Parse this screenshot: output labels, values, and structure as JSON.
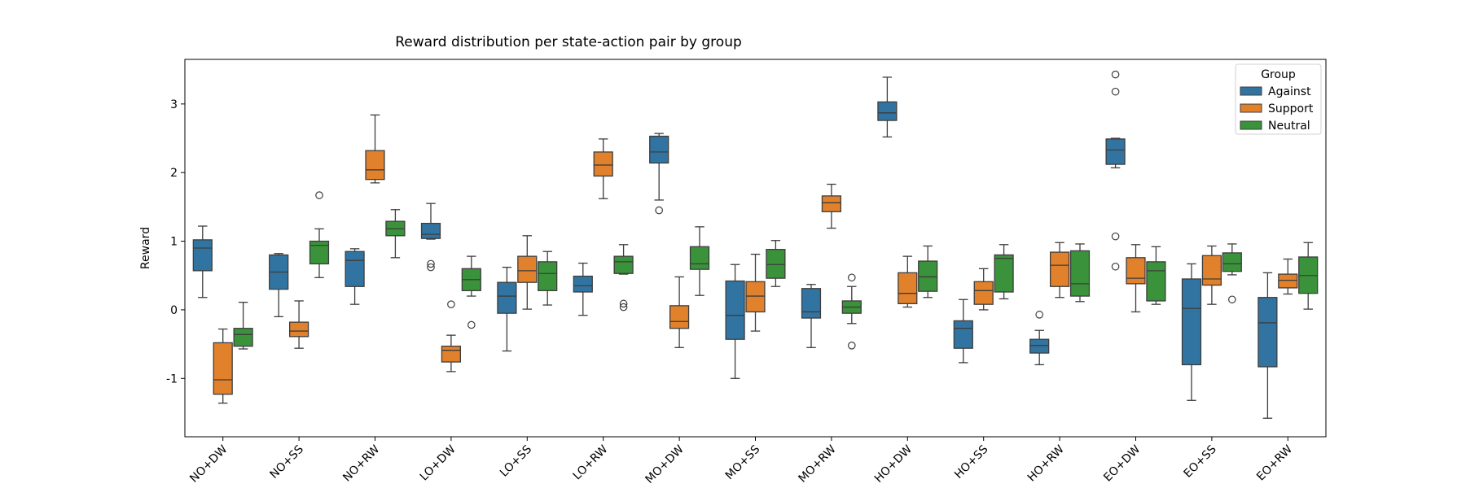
{
  "chart_data": {
    "type": "box",
    "title": "Reward distribution per state-action pair by group",
    "xlabel": "",
    "ylabel": "Reward",
    "ylim": [
      -1.85,
      3.65
    ],
    "yticks": [
      -1,
      0,
      1,
      2,
      3
    ],
    "grid": false,
    "categories": [
      "NO+DW",
      "NO+SS",
      "NO+RW",
      "LO+DW",
      "LO+SS",
      "LO+RW",
      "MO+DW",
      "MO+SS",
      "MO+RW",
      "HO+DW",
      "HO+SS",
      "HO+RW",
      "EO+DW",
      "EO+SS",
      "EO+RW"
    ],
    "legend": {
      "title": "Group",
      "placement": "top-right"
    },
    "series": [
      {
        "name": "Against",
        "color": "#3274a1",
        "boxes": [
          {
            "whislo": 0.18,
            "q1": 0.57,
            "med": 0.9,
            "q3": 1.02,
            "whishi": 1.22,
            "fliers": []
          },
          {
            "whislo": -0.1,
            "q1": 0.3,
            "med": 0.55,
            "q3": 0.8,
            "whishi": 0.82,
            "fliers": []
          },
          {
            "whislo": 0.08,
            "q1": 0.34,
            "med": 0.72,
            "q3": 0.85,
            "whishi": 0.89,
            "fliers": []
          },
          {
            "whislo": 1.03,
            "q1": 1.04,
            "med": 1.1,
            "q3": 1.26,
            "whishi": 1.55,
            "fliers": [
              0.67,
              0.62
            ]
          },
          {
            "whislo": -0.6,
            "q1": -0.05,
            "med": 0.2,
            "q3": 0.4,
            "whishi": 0.62,
            "fliers": []
          },
          {
            "whislo": -0.08,
            "q1": 0.26,
            "med": 0.35,
            "q3": 0.49,
            "whishi": 0.68,
            "fliers": []
          },
          {
            "whislo": 1.6,
            "q1": 2.14,
            "med": 2.3,
            "q3": 2.53,
            "whishi": 2.57,
            "fliers": [
              1.45
            ]
          },
          {
            "whislo": -1.0,
            "q1": -0.43,
            "med": -0.08,
            "q3": 0.42,
            "whishi": 0.66,
            "fliers": []
          },
          {
            "whislo": -0.55,
            "q1": -0.12,
            "med": -0.03,
            "q3": 0.31,
            "whishi": 0.37,
            "fliers": []
          },
          {
            "whislo": 2.52,
            "q1": 2.76,
            "med": 2.87,
            "q3": 3.03,
            "whishi": 3.39,
            "fliers": []
          },
          {
            "whislo": -0.77,
            "q1": -0.56,
            "med": -0.27,
            "q3": -0.16,
            "whishi": 0.15,
            "fliers": []
          },
          {
            "whislo": -0.8,
            "q1": -0.63,
            "med": -0.52,
            "q3": -0.43,
            "whishi": -0.3,
            "fliers": [
              -0.07
            ]
          },
          {
            "whislo": 2.07,
            "q1": 2.12,
            "med": 2.33,
            "q3": 2.49,
            "whishi": 2.5,
            "fliers": [
              3.43,
              3.18,
              1.07,
              0.63
            ]
          },
          {
            "whislo": -1.32,
            "q1": -0.8,
            "med": 0.02,
            "q3": 0.45,
            "whishi": 0.67,
            "fliers": []
          },
          {
            "whislo": -1.58,
            "q1": -0.83,
            "med": -0.19,
            "q3": 0.18,
            "whishi": 0.54,
            "fliers": []
          }
        ]
      },
      {
        "name": "Support",
        "color": "#e1812c",
        "boxes": [
          {
            "whislo": -1.36,
            "q1": -1.23,
            "med": -1.02,
            "q3": -0.48,
            "whishi": -0.28,
            "fliers": []
          },
          {
            "whislo": -0.56,
            "q1": -0.39,
            "med": -0.31,
            "q3": -0.18,
            "whishi": 0.13,
            "fliers": []
          },
          {
            "whislo": 1.85,
            "q1": 1.9,
            "med": 2.04,
            "q3": 2.32,
            "whishi": 2.84,
            "fliers": []
          },
          {
            "whislo": -0.9,
            "q1": -0.76,
            "med": -0.59,
            "q3": -0.53,
            "whishi": -0.37,
            "fliers": [
              0.08
            ]
          },
          {
            "whislo": 0.01,
            "q1": 0.4,
            "med": 0.57,
            "q3": 0.78,
            "whishi": 1.08,
            "fliers": []
          },
          {
            "whislo": 1.62,
            "q1": 1.95,
            "med": 2.11,
            "q3": 2.3,
            "whishi": 2.49,
            "fliers": []
          },
          {
            "whislo": -0.55,
            "q1": -0.27,
            "med": -0.17,
            "q3": 0.06,
            "whishi": 0.48,
            "fliers": []
          },
          {
            "whislo": -0.31,
            "q1": -0.03,
            "med": 0.2,
            "q3": 0.41,
            "whishi": 0.81,
            "fliers": []
          },
          {
            "whislo": 1.19,
            "q1": 1.43,
            "med": 1.56,
            "q3": 1.66,
            "whishi": 1.83,
            "fliers": []
          },
          {
            "whislo": 0.04,
            "q1": 0.09,
            "med": 0.24,
            "q3": 0.54,
            "whishi": 0.78,
            "fliers": []
          },
          {
            "whislo": 0.0,
            "q1": 0.08,
            "med": 0.28,
            "q3": 0.41,
            "whishi": 0.6,
            "fliers": []
          },
          {
            "whislo": 0.18,
            "q1": 0.34,
            "med": 0.65,
            "q3": 0.84,
            "whishi": 0.98,
            "fliers": []
          },
          {
            "whislo": -0.03,
            "q1": 0.38,
            "med": 0.46,
            "q3": 0.76,
            "whishi": 0.95,
            "fliers": []
          },
          {
            "whislo": 0.08,
            "q1": 0.36,
            "med": 0.45,
            "q3": 0.79,
            "whishi": 0.93,
            "fliers": []
          },
          {
            "whislo": 0.23,
            "q1": 0.32,
            "med": 0.43,
            "q3": 0.52,
            "whishi": 0.74,
            "fliers": []
          }
        ]
      },
      {
        "name": "Neutral",
        "color": "#3a923a",
        "boxes": [
          {
            "whislo": -0.57,
            "q1": -0.53,
            "med": -0.36,
            "q3": -0.27,
            "whishi": 0.11,
            "fliers": []
          },
          {
            "whislo": 0.47,
            "q1": 0.67,
            "med": 0.94,
            "q3": 1.0,
            "whishi": 1.18,
            "fliers": [
              1.67
            ]
          },
          {
            "whislo": 0.76,
            "q1": 1.08,
            "med": 1.18,
            "q3": 1.29,
            "whishi": 1.46,
            "fliers": []
          },
          {
            "whislo": 0.2,
            "q1": 0.28,
            "med": 0.44,
            "q3": 0.6,
            "whishi": 0.78,
            "fliers": [
              -0.22
            ]
          },
          {
            "whislo": 0.07,
            "q1": 0.28,
            "med": 0.53,
            "q3": 0.7,
            "whishi": 0.85,
            "fliers": []
          },
          {
            "whislo": 0.52,
            "q1": 0.53,
            "med": 0.7,
            "q3": 0.78,
            "whishi": 0.95,
            "fliers": [
              0.09,
              0.04
            ]
          },
          {
            "whislo": 0.21,
            "q1": 0.59,
            "med": 0.67,
            "q3": 0.92,
            "whishi": 1.21,
            "fliers": []
          },
          {
            "whislo": 0.34,
            "q1": 0.46,
            "med": 0.66,
            "q3": 0.88,
            "whishi": 1.01,
            "fliers": []
          },
          {
            "whislo": -0.2,
            "q1": -0.05,
            "med": 0.04,
            "q3": 0.13,
            "whishi": 0.34,
            "fliers": [
              0.47,
              -0.52
            ]
          },
          {
            "whislo": 0.18,
            "q1": 0.27,
            "med": 0.48,
            "q3": 0.71,
            "whishi": 0.93,
            "fliers": []
          },
          {
            "whislo": 0.16,
            "q1": 0.26,
            "med": 0.75,
            "q3": 0.8,
            "whishi": 0.95,
            "fliers": []
          },
          {
            "whislo": 0.12,
            "q1": 0.2,
            "med": 0.38,
            "q3": 0.86,
            "whishi": 0.96,
            "fliers": []
          },
          {
            "whislo": 0.08,
            "q1": 0.13,
            "med": 0.57,
            "q3": 0.7,
            "whishi": 0.92,
            "fliers": []
          },
          {
            "whislo": 0.51,
            "q1": 0.56,
            "med": 0.67,
            "q3": 0.83,
            "whishi": 0.96,
            "fliers": [
              0.15
            ]
          },
          {
            "whislo": 0.01,
            "q1": 0.24,
            "med": 0.5,
            "q3": 0.77,
            "whishi": 0.98,
            "fliers": []
          }
        ]
      }
    ]
  }
}
